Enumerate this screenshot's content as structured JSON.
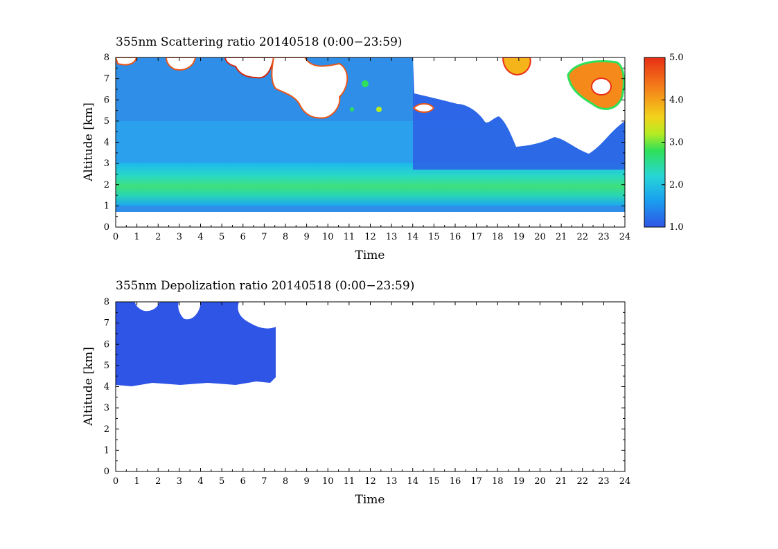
{
  "chart_data": [
    {
      "type": "heatmap",
      "title": "355nm Scattering ratio  20140518 (0:00−23:59)",
      "xlabel": "Time",
      "ylabel": "Altitude [km]",
      "xlim": [
        0,
        24
      ],
      "ylim": [
        0,
        8
      ],
      "x_ticks": [
        "0",
        "1",
        "2",
        "3",
        "4",
        "5",
        "6",
        "7",
        "8",
        "9",
        "10",
        "11",
        "12",
        "13",
        "14",
        "15",
        "16",
        "17",
        "18",
        "19",
        "20",
        "21",
        "22",
        "23",
        "24"
      ],
      "y_ticks": [
        "0",
        "1",
        "2",
        "3",
        "4",
        "5",
        "6",
        "7",
        "8"
      ],
      "colorbar": {
        "range": [
          1.0,
          5.0
        ],
        "tick_labels": [
          "1.0",
          "2.0",
          "3.0",
          "4.0",
          "5.0"
        ],
        "colors": [
          "#2f55e6",
          "#1aa0f0",
          "#27d6d6",
          "#2ee05a",
          "#b5ec22",
          "#f2d21a",
          "#f58a1a",
          "#e82e16"
        ]
      },
      "features": {
        "data_bottom_km": 0.75,
        "enhanced_layer_km": [
          1.1,
          2.4
        ],
        "enhanced_layer_peak_ratio": 2.7,
        "clouds": [
          {
            "time": [
              0.0,
              1.0
            ],
            "alt": [
              7.6,
              8.0
            ],
            "ratio": ">5"
          },
          {
            "time": [
              2.8,
              3.8
            ],
            "alt": [
              7.6,
              8.0
            ],
            "ratio": ">5"
          },
          {
            "time": [
              5.8,
              7.2
            ],
            "alt": [
              7.2,
              8.0
            ],
            "ratio": ">5"
          },
          {
            "time": [
              7.5,
              11.0
            ],
            "alt": [
              5.2,
              8.0
            ],
            "ratio": ">5"
          },
          {
            "time": [
              14.0,
              15.0
            ],
            "alt": [
              5.4,
              5.8
            ],
            "ratio": ">5"
          },
          {
            "time": [
              18.3,
              19.4
            ],
            "alt": [
              7.2,
              8.0
            ],
            "ratio": ">5"
          },
          {
            "time": [
              21.3,
              24.0
            ],
            "alt": [
              5.8,
              7.8
            ],
            "ratio": ">5"
          }
        ]
      }
    },
    {
      "type": "heatmap",
      "title": "355nm Depolization ratio  20140518 (0:00−23:59)",
      "xlabel": "Time",
      "ylabel": "Altitude [km]",
      "xlim": [
        0,
        24
      ],
      "ylim": [
        0,
        8
      ],
      "x_ticks": [
        "0",
        "1",
        "2",
        "3",
        "4",
        "5",
        "6",
        "7",
        "8",
        "9",
        "10",
        "11",
        "12",
        "13",
        "14",
        "15",
        "16",
        "17",
        "18",
        "19",
        "20",
        "21",
        "22",
        "23",
        "24"
      ],
      "y_ticks": [
        "0",
        "1",
        "2",
        "3",
        "4",
        "5",
        "6",
        "7",
        "8"
      ],
      "features": {
        "data_region": {
          "time": [
            0.0,
            7.5
          ],
          "alt": [
            4.0,
            8.0
          ]
        },
        "color": "#2f55e6"
      }
    }
  ]
}
